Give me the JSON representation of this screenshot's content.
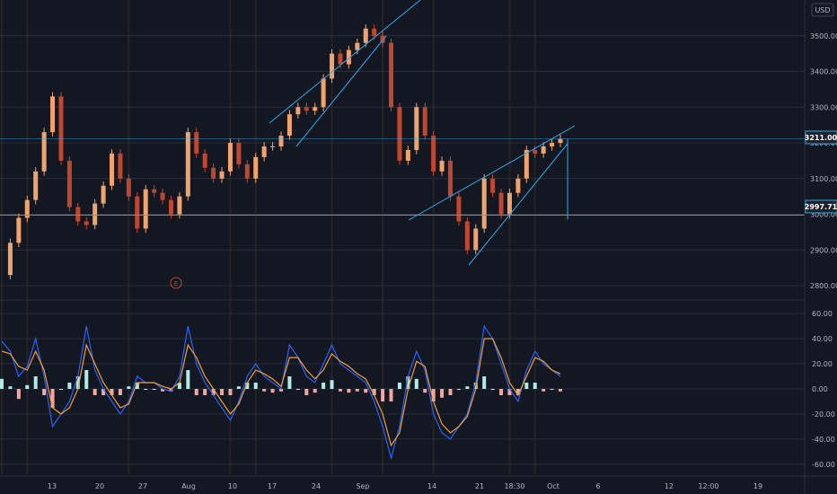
{
  "currency": "USD",
  "event_marker": "E",
  "colors": {
    "background": "#131722",
    "grid": "#2a2e39",
    "bull": "#f0a36d",
    "bear": "#c0472f",
    "trendline": "#2fa8e8",
    "blue_line": "#2962ff",
    "orange_line": "#f0a030",
    "hist_pos": "#b2ebe6",
    "hist_neg": "#f3a7a0",
    "highlight_band": "#4a3a2a"
  },
  "price_labels": {
    "current": "3211.00",
    "level": "2997.71"
  },
  "chart_data": [
    {
      "type": "candlestick",
      "axis": {
        "y_ticks": [
          "3500.00",
          "3400.00",
          "3300.00",
          "3200.00",
          "3100.00",
          "3000.00",
          "2900.00",
          "2800.00"
        ],
        "y_values": [
          3500,
          3400,
          3300,
          3200,
          3100,
          3000,
          2900,
          2800
        ],
        "ylim": [
          2770,
          3600
        ]
      },
      "x_ticks": [
        "13",
        "20",
        "27",
        "Aug",
        "10",
        "17",
        "24",
        "Sep",
        "14",
        "21",
        "18:30",
        "Oct",
        "6",
        "12",
        "12:00",
        "19"
      ],
      "close_series": [
        2830,
        2920,
        2990,
        3040,
        3120,
        3230,
        3330,
        3150,
        3020,
        2980,
        2970,
        3030,
        3080,
        3170,
        3100,
        3050,
        2960,
        3070,
        3060,
        3040,
        3000,
        3050,
        3230,
        3170,
        3130,
        3100,
        3120,
        3200,
        3140,
        3100,
        3160,
        3190,
        3190,
        3220,
        3280,
        3300,
        3290,
        3300,
        3380,
        3450,
        3420,
        3460,
        3480,
        3520,
        3500,
        3480,
        3300,
        3150,
        3180,
        3300,
        3220,
        3120,
        3150,
        3050,
        2980,
        2900,
        2960,
        3100,
        3060,
        3000,
        3060,
        3100,
        3180,
        3170,
        3190,
        3200,
        3211
      ],
      "trendlines": [
        {
          "from": [
            3256,
            3580
          ],
          "note": "upper channel"
        },
        {
          "from": [
            2830,
            3195
          ],
          "note": "lower wedge"
        }
      ],
      "level_value": 2997.71,
      "current_value": 3211.0
    },
    {
      "type": "line",
      "axis": {
        "y_ticks": [
          "60.00",
          "40.00",
          "20.00",
          "0.00",
          "-20.00",
          "-40.00",
          "-60.00"
        ],
        "y_values": [
          60,
          40,
          20,
          0,
          -20,
          -40,
          -60
        ],
        "ylim": [
          -68,
          68
        ]
      },
      "series": [
        {
          "values": [
            38,
            30,
            10,
            18,
            40,
            10,
            -30,
            -20,
            -10,
            10,
            50,
            15,
            0,
            -10,
            -20,
            -10,
            10,
            5,
            5,
            0,
            -2,
            10,
            50,
            20,
            5,
            -5,
            -15,
            -25,
            -10,
            10,
            20,
            10,
            5,
            0,
            35,
            25,
            10,
            5,
            20,
            35,
            20,
            15,
            10,
            5,
            -10,
            -30,
            -55,
            -30,
            10,
            30,
            15,
            -20,
            -35,
            -40,
            -30,
            -20,
            5,
            50,
            40,
            20,
            0,
            -10,
            15,
            30,
            20,
            15,
            10
          ]
        },
        {
          "values": [
            30,
            28,
            18,
            15,
            30,
            15,
            -15,
            -20,
            -15,
            0,
            35,
            20,
            5,
            -5,
            -15,
            -12,
            5,
            5,
            5,
            2,
            0,
            5,
            35,
            25,
            10,
            0,
            -10,
            -20,
            -12,
            5,
            15,
            12,
            8,
            2,
            25,
            25,
            15,
            8,
            15,
            28,
            22,
            18,
            12,
            8,
            -5,
            -20,
            -45,
            -35,
            0,
            22,
            18,
            -10,
            -28,
            -35,
            -30,
            -22,
            0,
            40,
            40,
            25,
            5,
            -5,
            10,
            25,
            22,
            15,
            12
          ]
        },
        {
          "values": [
            8,
            2,
            -8,
            3,
            10,
            -5,
            -15,
            0,
            5,
            10,
            15,
            -5,
            -5,
            -5,
            -5,
            2,
            5,
            0,
            0,
            -2,
            -2,
            5,
            15,
            -5,
            -5,
            -5,
            -5,
            -5,
            2,
            5,
            5,
            -2,
            -3,
            -2,
            10,
            0,
            -5,
            -3,
            5,
            7,
            -2,
            -3,
            -2,
            -3,
            -5,
            -10,
            -10,
            5,
            10,
            8,
            -3,
            -10,
            -7,
            -5,
            0,
            2,
            5,
            10,
            0,
            -5,
            -5,
            -5,
            5,
            5,
            -2,
            0,
            -2
          ]
        }
      ]
    }
  ]
}
